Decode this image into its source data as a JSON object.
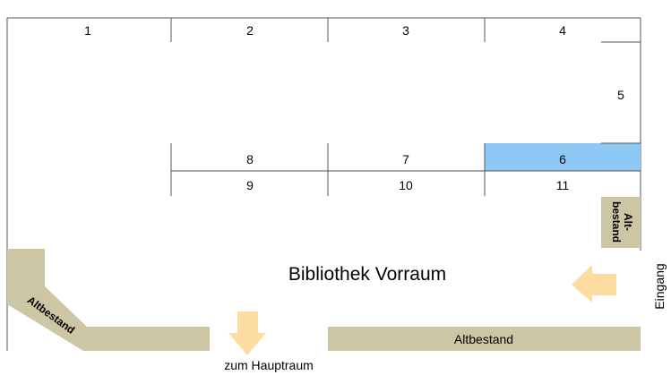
{
  "room_title": "Bibliothek Vorraum",
  "shelves": {
    "s1": "1",
    "s2": "2",
    "s3": "3",
    "s4": "4",
    "s5": "5",
    "s6": "6",
    "s7": "7",
    "s8": "8",
    "s9": "9",
    "s10": "10",
    "s11": "11"
  },
  "altbestand_left": "Altbestand",
  "altbestand_bottom": "Altbestand",
  "altbestand_right_line1": "Alt-",
  "altbestand_right_line2": "bestand",
  "exit_label": "zum Hauptraum",
  "entrance_label": "Eingang",
  "colors": {
    "highlight": "#8ec8f5",
    "altbestand": "#cdc6a5",
    "arrow": "#fcdca0",
    "wall": "#555555"
  }
}
